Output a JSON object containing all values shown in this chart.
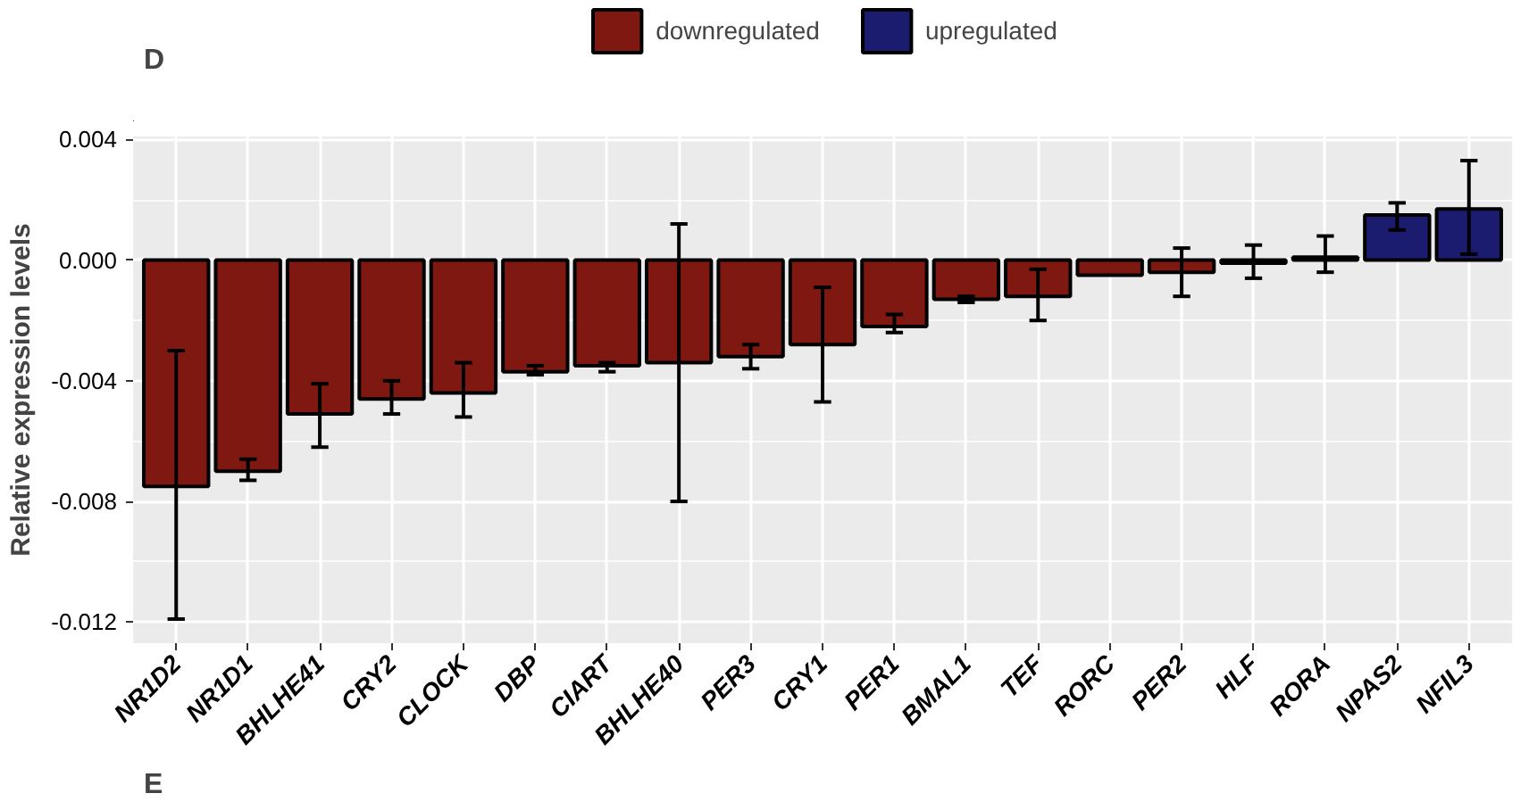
{
  "chart_data": {
    "type": "bar",
    "ylabel": "Relative expression levels",
    "categories": [
      "NR1D2",
      "NR1D1",
      "BHLHE41",
      "CRY2",
      "CLOCK",
      "DBP",
      "CIART",
      "BHLHE40",
      "PER3",
      "CRY1",
      "PER1",
      "BMAL1",
      "TEF",
      "RORC",
      "PER2",
      "HLF",
      "RORA",
      "NPAS2",
      "NFIL3"
    ],
    "series": [
      {
        "name": "downregulated",
        "color": "#7f1810",
        "values": [
          -0.0075,
          -0.007,
          -0.0051,
          -0.0046,
          -0.0044,
          -0.0037,
          -0.0035,
          -0.0034,
          -0.0032,
          -0.0028,
          -0.0022,
          -0.0013,
          -0.0012,
          -0.0005,
          -0.0004,
          -0.0001,
          null,
          null,
          null
        ],
        "errors": [
          [
            -0.0119,
            -0.003
          ],
          [
            -0.0073,
            -0.0066
          ],
          [
            -0.0062,
            -0.0041
          ],
          [
            -0.0051,
            -0.004
          ],
          [
            -0.0052,
            -0.0034
          ],
          [
            -0.0038,
            -0.0035
          ],
          [
            -0.0037,
            -0.0034
          ],
          [
            -0.008,
            0.0012
          ],
          [
            -0.0036,
            -0.0028
          ],
          [
            -0.0047,
            -0.0009
          ],
          [
            -0.0024,
            -0.0018
          ],
          [
            -0.0014,
            -0.0012
          ],
          [
            -0.002,
            -0.0003
          ],
          null,
          [
            -0.0012,
            0.0004
          ],
          [
            -0.0006,
            0.0005
          ],
          null,
          null,
          null
        ]
      },
      {
        "name": "upregulated",
        "color": "#1b1b70",
        "values": [
          null,
          null,
          null,
          null,
          null,
          null,
          null,
          null,
          null,
          null,
          null,
          null,
          null,
          null,
          null,
          null,
          0.0001,
          0.0015,
          0.0017
        ],
        "errors": [
          null,
          null,
          null,
          null,
          null,
          null,
          null,
          null,
          null,
          null,
          null,
          null,
          null,
          null,
          null,
          null,
          [
            -0.0004,
            0.0008
          ],
          [
            0.001,
            0.0019
          ],
          [
            0.0002,
            0.0033
          ]
        ]
      }
    ],
    "ylim": [
      -0.0127,
      0.0041
    ],
    "yticks": [
      {
        "value": 0.004,
        "label": "0.004"
      },
      {
        "value": 0.0,
        "label": "0.000"
      },
      {
        "value": -0.004,
        "label": "-0.004"
      },
      {
        "value": -0.008,
        "label": "-0.008"
      },
      {
        "value": -0.012,
        "label": "-0.012"
      }
    ],
    "grid": true,
    "legend": "top",
    "annotations": [
      "D",
      "E"
    ]
  }
}
